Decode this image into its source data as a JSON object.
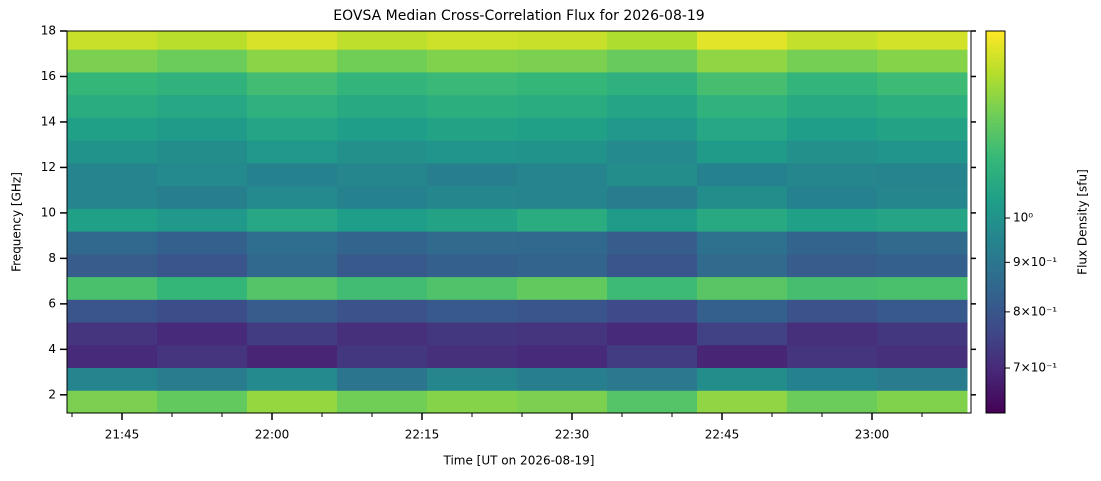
{
  "chart_data": {
    "type": "heatmap",
    "title": "EOVSA Median Cross-Correlation Flux for 2026-08-19",
    "x_label": "Time [UT on 2026-08-19]",
    "y_label": "Frequency [GHz]",
    "colorbar_label": "Flux Density [sfu]",
    "x": [
      1304,
      1313,
      1322,
      1331,
      1340,
      1349,
      1358,
      1367,
      1376,
      1385
    ],
    "y": [
      1.7,
      2.7,
      3.7,
      4.7,
      5.7,
      6.7,
      7.7,
      8.7,
      9.7,
      10.7,
      11.7,
      12.7,
      13.7,
      14.7,
      15.7,
      16.7,
      17.7
    ],
    "values": [
      [
        1.3,
        1.25,
        1.35,
        1.28,
        1.32,
        1.3,
        1.22,
        1.34,
        1.27,
        1.31
      ],
      [
        0.95,
        0.92,
        0.97,
        0.9,
        0.96,
        0.93,
        0.91,
        0.98,
        0.94,
        0.92
      ],
      [
        0.7,
        0.72,
        0.69,
        0.73,
        0.71,
        0.7,
        0.74,
        0.69,
        0.72,
        0.71
      ],
      [
        0.72,
        0.7,
        0.74,
        0.71,
        0.73,
        0.72,
        0.7,
        0.75,
        0.71,
        0.73
      ],
      [
        0.8,
        0.78,
        0.82,
        0.79,
        0.81,
        0.8,
        0.77,
        0.83,
        0.79,
        0.81
      ],
      [
        1.2,
        1.15,
        1.22,
        1.18,
        1.21,
        1.25,
        1.17,
        1.23,
        1.19,
        1.2
      ],
      [
        0.82,
        0.8,
        0.85,
        0.81,
        0.83,
        0.84,
        0.8,
        0.86,
        0.82,
        0.83
      ],
      [
        0.85,
        0.83,
        0.87,
        0.84,
        0.86,
        0.85,
        0.82,
        0.88,
        0.84,
        0.86
      ],
      [
        1.05,
        1.02,
        1.08,
        1.04,
        1.06,
        1.1,
        1.03,
        1.09,
        1.05,
        1.07
      ],
      [
        0.95,
        0.93,
        0.97,
        0.94,
        0.96,
        0.95,
        0.92,
        0.98,
        0.94,
        0.96
      ],
      [
        0.95,
        0.97,
        0.94,
        0.96,
        0.93,
        0.95,
        0.98,
        0.94,
        0.96,
        0.95
      ],
      [
        1.0,
        0.98,
        1.02,
        0.99,
        1.01,
        1.0,
        0.97,
        1.03,
        0.99,
        1.01
      ],
      [
        1.05,
        1.03,
        1.07,
        1.04,
        1.06,
        1.05,
        1.02,
        1.08,
        1.04,
        1.06
      ],
      [
        1.1,
        1.08,
        1.12,
        1.09,
        1.11,
        1.1,
        1.07,
        1.13,
        1.09,
        1.11
      ],
      [
        1.15,
        1.13,
        1.18,
        1.14,
        1.16,
        1.15,
        1.12,
        1.19,
        1.14,
        1.17
      ],
      [
        1.3,
        1.27,
        1.33,
        1.28,
        1.31,
        1.3,
        1.26,
        1.34,
        1.29,
        1.32
      ],
      [
        1.45,
        1.42,
        1.48,
        1.43,
        1.46,
        1.45,
        1.4,
        1.5,
        1.44,
        1.47
      ]
    ],
    "xlim": [
      1299.5,
      1389.9
    ],
    "xticks": [
      {
        "value": 1305,
        "label": "21:45"
      },
      {
        "value": 1320,
        "label": "22:00"
      },
      {
        "value": 1335,
        "label": "22:15"
      },
      {
        "value": 1350,
        "label": "22:30"
      },
      {
        "value": 1365,
        "label": "22:45"
      },
      {
        "value": 1380,
        "label": "23:00"
      }
    ],
    "x_minor_ticks": [
      1300,
      1310,
      1315,
      1325,
      1330,
      1340,
      1345,
      1355,
      1360,
      1370,
      1375,
      1385
    ],
    "ylim": [
      1.2,
      18
    ],
    "yticks": [
      2,
      4,
      6,
      8,
      10,
      12,
      14,
      16,
      18
    ],
    "clim": [
      0.629,
      1.56
    ],
    "color_scale": "log",
    "colormap": "viridis",
    "cticks": [
      {
        "value": 0.7,
        "label": "7×10⁻¹"
      },
      {
        "value": 0.8,
        "label": "8×10⁻¹"
      },
      {
        "value": 0.9,
        "label": "9×10⁻¹"
      },
      {
        "value": 1,
        "label": "10⁰"
      }
    ]
  }
}
